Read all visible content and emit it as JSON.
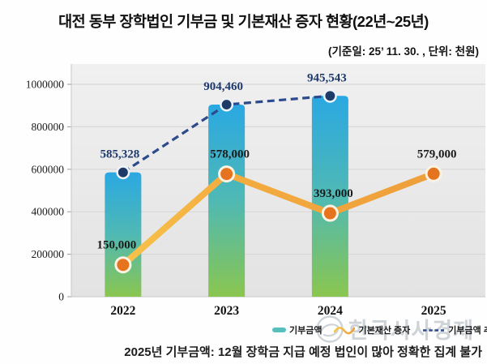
{
  "title": "대전 동부 장학법인 기부금 및 기본재산 증자 현황(22년~25년)",
  "subtitle": "(기준일: 25’ 11. 30. , 단위: 천원)",
  "footnote": "2025년 기부금액: 12월 장학금 지급 예정 법인이 많아 정확한 집계 불가",
  "watermark": {
    "text": "한국시사경제",
    "logo": "swirl-logo"
  },
  "legend": [
    {
      "label": "기부금액",
      "marker": "teal-bar-swatch"
    },
    {
      "label": "기본재산 증자",
      "marker": "orange-wave-line"
    },
    {
      "label": "기부금액 추세선",
      "marker": "navy-dashed-line"
    }
  ],
  "colors": {
    "bar_top": "#2AA8E2",
    "bar_mid": "#4FB9B4",
    "bar_bottom": "#8AC64F",
    "orange_line_start": "#F8C84E",
    "orange_line_end": "#ED9C3A",
    "orange_dot": "#E6731E",
    "navy_line": "#2C4A8C",
    "navy_dot": "#1E3A66",
    "navy_label": "#1E3A6D",
    "black_label": "#1B1B1B",
    "panel_top": "#F0F0F0",
    "panel_bottom": "#E3E3E3",
    "gridline": "#D8D8D8",
    "axis_tick": "#9A9A9A",
    "legend_swatch_teal": "#58C0BC"
  },
  "chart_data": {
    "type": "bar",
    "subtype": "bar+line combo",
    "categories": [
      "2022",
      "2023",
      "2024",
      "2025"
    ],
    "series": [
      {
        "name": "기부금액",
        "type": "bar",
        "values": [
          585328,
          904460,
          945543,
          null
        ],
        "labels": [
          "585,328",
          "904,460",
          "945,543",
          ""
        ]
      },
      {
        "name": "기본재산 증자",
        "type": "line",
        "values": [
          150000,
          578000,
          393000,
          579000
        ],
        "labels": [
          "150,000",
          "578,000",
          "393,000",
          "579,000"
        ]
      },
      {
        "name": "기부금액 추세선",
        "type": "dashed_line",
        "values": [
          585328,
          904460,
          945543,
          null
        ]
      }
    ],
    "title": "대전 동부 장학법인 기부금 및 기본재산 증자 현황(22년~25년)",
    "xlabel": "",
    "ylabel": "천원",
    "ylim": [
      0,
      1000000
    ],
    "yticks": [
      0,
      200000,
      400000,
      600000,
      800000,
      1000000
    ],
    "grid": "horizontal",
    "legend_position": "bottom-right",
    "note": "2025년 기부금액: 12월 장학금 지급 예정 법인이 많아 정확한 집계 불가"
  }
}
